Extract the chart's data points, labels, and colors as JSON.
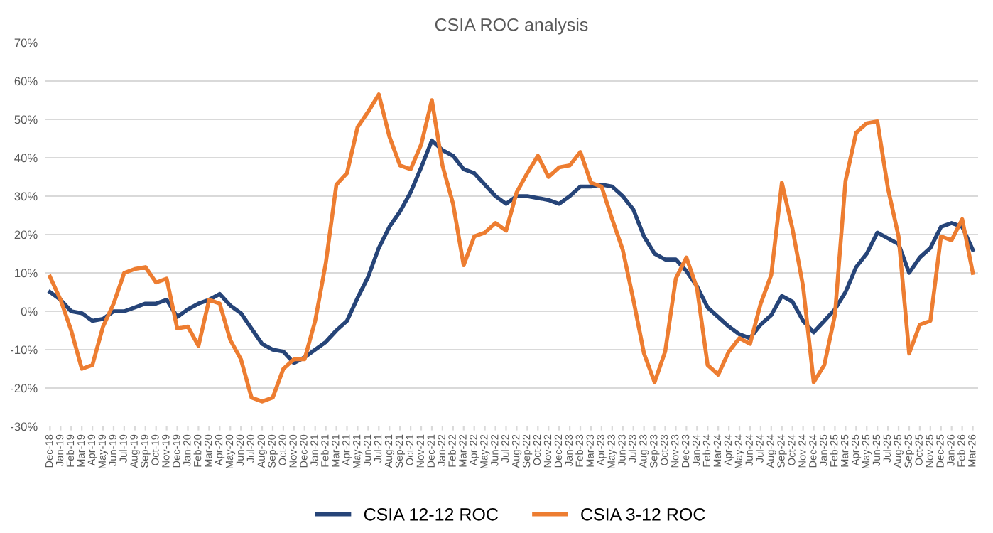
{
  "chart_data": {
    "type": "line",
    "title": "CSIA ROC analysis",
    "categories": [
      "Dec-18",
      "Jan-19",
      "Feb-19",
      "Mar-19",
      "Apr-19",
      "May-19",
      "Jun-19",
      "Jul-19",
      "Aug-19",
      "Sep-19",
      "Oct-19",
      "Nov-19",
      "Dec-19",
      "Jan-20",
      "Feb-20",
      "Mar-20",
      "Apr-20",
      "May-20",
      "Jun-20",
      "Jul-20",
      "Aug-20",
      "Sep-20",
      "Oct-20",
      "Nov-20",
      "Dec-20",
      "Jan-21",
      "Feb-21",
      "Mar-21",
      "Apr-21",
      "May-21",
      "Jun-21",
      "Jul-21",
      "Aug-21",
      "Sep-21",
      "Oct-21",
      "Nov-21",
      "Dec-21",
      "Jan-22",
      "Feb-22",
      "Mar-22",
      "Apr-22",
      "May-22",
      "Jun-22",
      "Jul-22",
      "Aug-22",
      "Sep-22",
      "Oct-22",
      "Nov-22",
      "Dec-22",
      "Jan-23",
      "Feb-23",
      "Mar-23",
      "Apr-23",
      "May-23",
      "Jun-23",
      "Jul-23",
      "Aug-23",
      "Sep-23",
      "Oct-23",
      "Nov-23",
      "Dec-23",
      "Jan-24",
      "Feb-24",
      "Mar-24",
      "Apr-24",
      "May-24",
      "Jun-24",
      "Jul-24",
      "Aug-24",
      "Sep-24",
      "Oct-24",
      "Nov-24",
      "Dec-24",
      "Jan-25",
      "Feb-25",
      "Mar-25",
      "Apr-25",
      "May-25",
      "Jun-25",
      "Jul-25",
      "Aug-25",
      "Sep-25",
      "Oct-25",
      "Nov-25",
      "Dec-25",
      "Jan-26",
      "Feb-26",
      "Mar-26"
    ],
    "series": [
      {
        "name": "CSIA 12-12 ROC",
        "color": "#264478",
        "values": [
          5,
          3,
          0,
          -0.5,
          -2.5,
          -2,
          0,
          0,
          1,
          2,
          2,
          3,
          -1.5,
          0.5,
          2,
          3,
          4.5,
          1.5,
          -0.5,
          -4.5,
          -8.5,
          -10,
          -10.5,
          -13.5,
          -12,
          -10,
          -8,
          -5,
          -2.5,
          3.5,
          9,
          16.5,
          22,
          26,
          31,
          37.5,
          44.5,
          42,
          40.5,
          37,
          36,
          33,
          30,
          28,
          30,
          30,
          29.5,
          29,
          28,
          30,
          32.5,
          32.5,
          33,
          32.5,
          30,
          26.5,
          19.5,
          15,
          13.5,
          13.5,
          10.5,
          6.5,
          1,
          -1.5,
          -4,
          -6,
          -7,
          -3.5,
          -1,
          4,
          2.5,
          -2.5,
          -5.5,
          -2.5,
          0.5,
          5,
          11.5,
          15,
          20.5,
          19,
          17.5,
          10,
          14,
          16.5,
          22,
          23,
          22,
          16
        ]
      },
      {
        "name": "CSIA 3-12 ROC",
        "color": "#ED7D31",
        "values": [
          9,
          3,
          -5,
          -15,
          -14,
          -4,
          2,
          10,
          11,
          11.5,
          7.5,
          8.5,
          -4.5,
          -4,
          -9,
          3,
          2,
          -7.5,
          -12.5,
          -22.5,
          -23.5,
          -22.5,
          -15,
          -12.5,
          -12.5,
          -2.5,
          12.5,
          33,
          36,
          48,
          52,
          56.5,
          45.5,
          38,
          37,
          43.5,
          55,
          38,
          28,
          12,
          19.5,
          20.5,
          23,
          21,
          31,
          36,
          40.5,
          35,
          37.5,
          38,
          41.5,
          33.5,
          32.5,
          24,
          16,
          3,
          -11,
          -18.5,
          -10.5,
          8.5,
          14,
          6,
          -14,
          -16.5,
          -10.5,
          -7,
          -8.5,
          2,
          9.5,
          33.5,
          21.5,
          6.5,
          -18.5,
          -14,
          -1,
          34,
          46.5,
          49,
          49.5,
          32,
          19.5,
          -11,
          -3.5,
          -2.5,
          19.5,
          18.5,
          24,
          10
        ]
      }
    ],
    "ylim": [
      -30,
      70
    ],
    "yticks": [
      {
        "value": -30,
        "label": "-30%"
      },
      {
        "value": -20,
        "label": "-20%"
      },
      {
        "value": -10,
        "label": "-10%"
      },
      {
        "value": 0,
        "label": "0%"
      },
      {
        "value": 10,
        "label": "10%"
      },
      {
        "value": 20,
        "label": "20%"
      },
      {
        "value": 30,
        "label": "30%"
      },
      {
        "value": 40,
        "label": "40%"
      },
      {
        "value": 50,
        "label": "50%"
      },
      {
        "value": 60,
        "label": "60%"
      },
      {
        "value": 70,
        "label": "70%"
      }
    ],
    "grid": "y",
    "legend": "bottom",
    "marker": "none",
    "line_style": "solid"
  }
}
